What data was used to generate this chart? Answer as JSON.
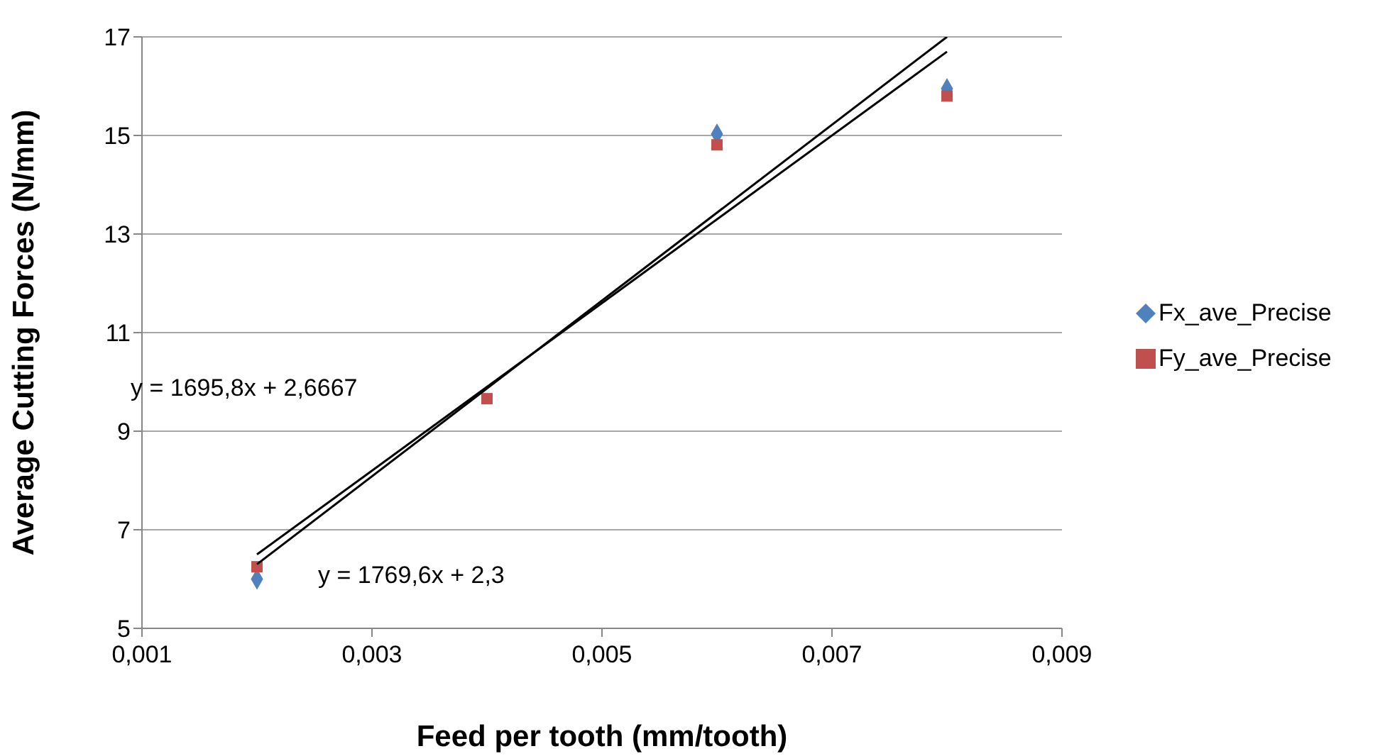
{
  "chart_data": {
    "type": "scatter",
    "xlabel": "Feed per tooth (mm/tooth)",
    "ylabel": "Average Cutting Forces (N/mm)",
    "xlim": [
      0.001,
      0.009
    ],
    "xticks": [
      {
        "value": 0.001,
        "label": "0,001"
      },
      {
        "value": 0.003,
        "label": "0,003"
      },
      {
        "value": 0.005,
        "label": "0,005"
      },
      {
        "value": 0.007,
        "label": "0,007"
      },
      {
        "value": 0.009,
        "label": "0,009"
      }
    ],
    "ylim": [
      5,
      17
    ],
    "yticks": [
      5,
      7,
      9,
      11,
      13,
      15,
      17
    ],
    "grid": "y",
    "legend": "right",
    "series": [
      {
        "name": "Fx_ave_Precise",
        "color": "#4f81bd",
        "marker": "diamond",
        "x": [
          0.002,
          0.004,
          0.006,
          0.008
        ],
        "values": [
          6.0,
          null,
          15.03,
          15.95
        ]
      },
      {
        "name": "Fy_ave_Precise",
        "color": "#c0504d",
        "marker": "square",
        "x": [
          0.002,
          0.004,
          0.006,
          0.008
        ],
        "values": [
          6.25,
          9.66,
          14.81,
          15.8
        ]
      },
      {
        "type": "line",
        "color": "#000000",
        "marker": "none",
        "x": [
          0.002,
          0.008
        ],
        "values": [
          6.3,
          17.0
        ]
      },
      {
        "type": "line",
        "color": "#000000",
        "marker": "none",
        "x": [
          0.002,
          0.008
        ],
        "values": [
          6.5,
          16.7
        ]
      }
    ],
    "annotations": [
      "y = 1695,8x + 2,6667",
      "y = 1769,6x + 2,3"
    ]
  }
}
